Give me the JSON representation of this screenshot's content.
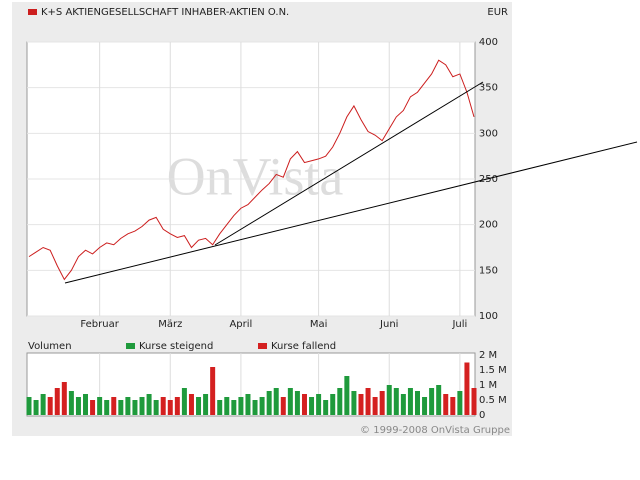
{
  "chart_data": {
    "type": "line",
    "title": "K+S AKTIENGESELLSCHAFT INHABER-AKTIEN O.N.",
    "unit": "EUR",
    "watermark": "OnVista",
    "footer": "© 1999-2008 OnVista Gruppe",
    "categories": [
      null,
      null,
      null,
      null,
      null,
      null,
      null,
      null,
      null,
      null,
      "Februar",
      null,
      null,
      null,
      null,
      null,
      null,
      null,
      null,
      null,
      "März",
      null,
      null,
      null,
      null,
      null,
      null,
      null,
      null,
      null,
      "April",
      null,
      null,
      null,
      null,
      null,
      null,
      null,
      null,
      null,
      null,
      "Mai",
      null,
      null,
      null,
      null,
      null,
      null,
      null,
      null,
      null,
      "Juni",
      null,
      null,
      null,
      null,
      null,
      null,
      null,
      null,
      null,
      "Juli",
      null,
      null
    ],
    "series": [
      {
        "name": "K+S AKTIENGESELLSCHAFT INHABER-AKTIEN O.N.",
        "color": "#cc1e1e",
        "values": [
          165,
          170,
          175,
          172,
          155,
          140,
          150,
          165,
          172,
          168,
          175,
          180,
          178,
          185,
          190,
          193,
          198,
          205,
          208,
          195,
          190,
          186,
          188,
          175,
          183,
          185,
          178,
          190,
          200,
          210,
          218,
          222,
          230,
          238,
          245,
          255,
          252,
          272,
          280,
          268,
          270,
          272,
          275,
          285,
          300,
          318,
          330,
          315,
          302,
          298,
          292,
          305,
          318,
          325,
          340,
          345,
          355,
          365,
          380,
          375,
          362,
          365,
          345,
          318
        ]
      }
    ],
    "ylim": [
      100,
      400
    ],
    "yticks": [
      100,
      150,
      200,
      250,
      300,
      350,
      400
    ],
    "grid": true,
    "volume": {
      "name": "Volumen",
      "up_label": "Kurse steigend",
      "up_color": "#1f9a3c",
      "down_label": "Kurse fallend",
      "down_color": "#d42020",
      "values": [
        0.6,
        0.5,
        0.7,
        0.6,
        0.9,
        1.1,
        0.8,
        0.6,
        0.7,
        0.5,
        0.6,
        0.5,
        0.6,
        0.5,
        0.6,
        0.5,
        0.6,
        0.7,
        0.5,
        0.6,
        0.5,
        0.6,
        0.9,
        0.7,
        0.6,
        0.7,
        1.6,
        0.5,
        0.6,
        0.5,
        0.6,
        0.7,
        0.5,
        0.6,
        0.8,
        0.9,
        0.6,
        0.9,
        0.8,
        0.7,
        0.6,
        0.7,
        0.5,
        0.7,
        0.9,
        1.3,
        0.8,
        0.7,
        0.9,
        0.6,
        0.8,
        1.0,
        0.9,
        0.7,
        0.9,
        0.8,
        0.6,
        0.9,
        1.0,
        0.7,
        0.6,
        0.8,
        1.75,
        0.9
      ],
      "vlim": [
        0,
        2
      ],
      "vticks": [
        0,
        {
          "value": 0.5,
          "label": "0.5 M"
        },
        {
          "value": 1,
          "label": "1 M"
        },
        {
          "value": 1.5,
          "label": "1.5 M"
        },
        {
          "value": 2,
          "label": "2 M"
        }
      ]
    }
  }
}
